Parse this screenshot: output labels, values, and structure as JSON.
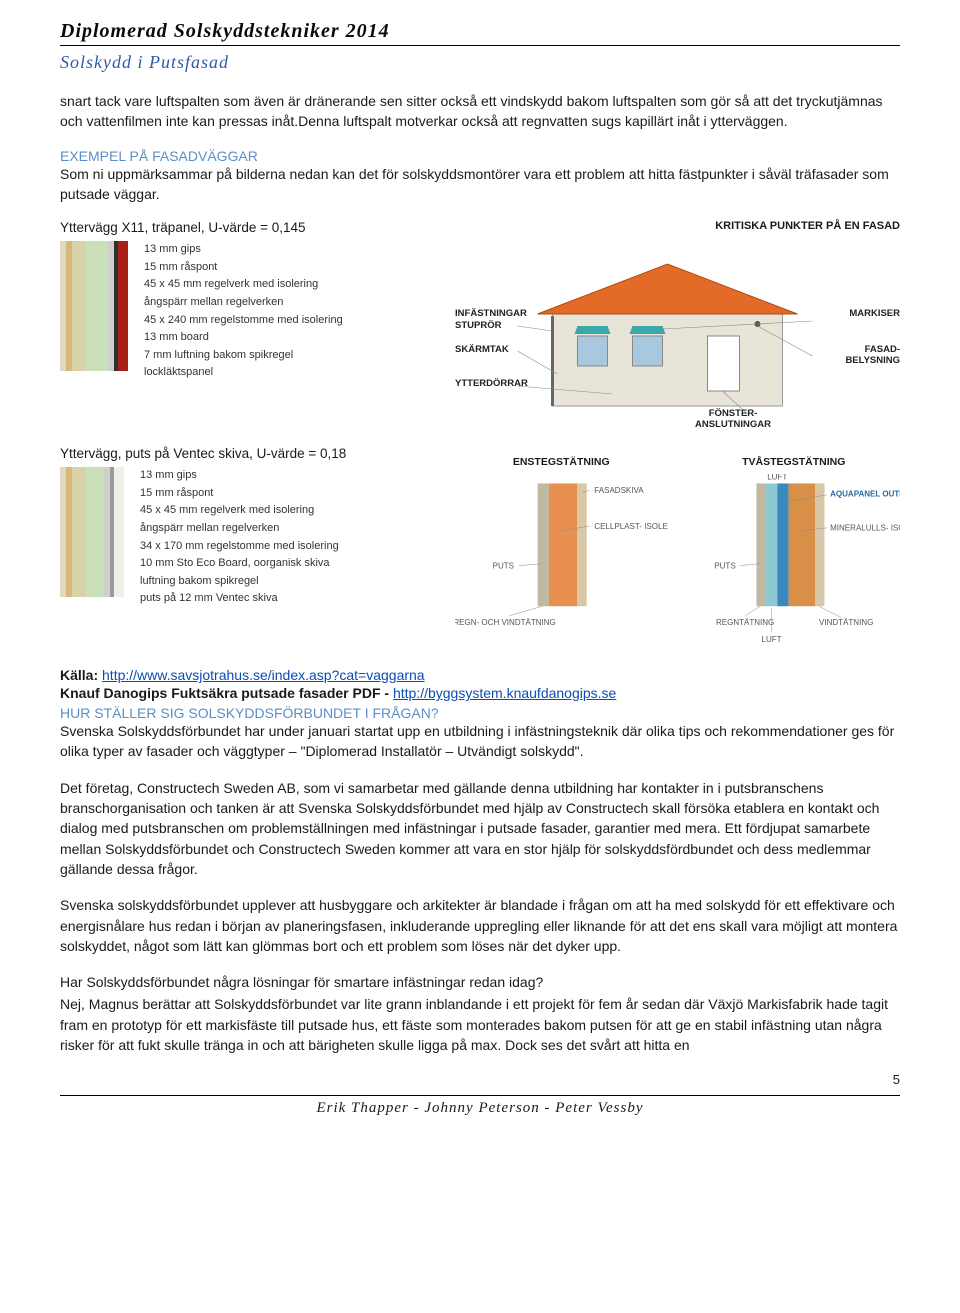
{
  "header": {
    "title": "Diplomerad Solskyddstekniker 2014",
    "subtitle": "Solskydd i Putsfasad"
  },
  "intro": {
    "p1": "snart tack vare luftspalten som även är dränerande sen sitter också ett vindskydd bakom luftspalten som gör så att det tryckutjämnas och vattenfilmen inte kan pressas inåt.Denna luftspalt motverkar också att regnvatten sugs kapillärt inåt i ytterväggen."
  },
  "example": {
    "heading": "EXEMPEL PÅ FASADVÄGGAR",
    "text": "Som ni uppmärksammar på bilderna nedan kan det för solskyddsmontörer vara ett problem att hitta fästpunkter i såväl träfasader som putsade väggar."
  },
  "diagram1": {
    "title": "Yttervägg X11, träpanel, U-värde = 0,145",
    "layers": [
      "13 mm gips",
      "15 mm råspont",
      "45 x 45 mm regelverk med isolering",
      "ångspärr mellan regelverken",
      "45 x 240 mm regelstomme med isolering",
      "13 mm board",
      "7 mm luftning bakom spikregel",
      "lockläktspanel"
    ],
    "bars": [
      {
        "w": 6,
        "c": "#e0d8c0"
      },
      {
        "w": 6,
        "c": "#d6b87a"
      },
      {
        "w": 14,
        "c": "#d8d2a8"
      },
      {
        "w": 22,
        "c": "#c9e0b8"
      },
      {
        "w": 6,
        "c": "#cfcfcf"
      },
      {
        "w": 4,
        "c": "#303030"
      },
      {
        "w": 10,
        "c": "#a82015"
      }
    ]
  },
  "diagram2": {
    "title": "Yttervägg, puts på Ventec skiva,  U-värde = 0,18",
    "layers": [
      "13 mm gips",
      "15 mm råspont",
      "45 x 45 mm regelverk med isolering",
      "ångspärr mellan regelverken",
      "34 x 170 mm regelstomme med isolering",
      "10 mm Sto Eco Board, oorganisk skiva",
      "luftning bakom spikregel",
      "puts på 12 mm Ventec skiva"
    ],
    "bars": [
      {
        "w": 6,
        "c": "#e0d8c0"
      },
      {
        "w": 6,
        "c": "#d6b87a"
      },
      {
        "w": 14,
        "c": "#d8d2a8"
      },
      {
        "w": 18,
        "c": "#c9e0b8"
      },
      {
        "w": 6,
        "c": "#cfcfcf"
      },
      {
        "w": 4,
        "c": "#9a9a9a"
      },
      {
        "w": 10,
        "c": "#f0efe8"
      }
    ]
  },
  "house": {
    "title": "KRITISKA PUNKTER PÅ EN FASAD",
    "labels": {
      "infastningar": "INFÄSTNINGAR",
      "stupror": "STUPRÖR",
      "skarmtak": "SKÄRMTAK",
      "ytterdorrar": "YTTERDÖRRAR",
      "markiser": "MARKISER",
      "fasadbelysning": "FASAD-\nBELYSNING",
      "fonster": "FÖNSTER-\nANSLUTNINGAR"
    },
    "colors": {
      "roof": "#e46a28",
      "wall": "#e8e4d8",
      "window": "#a8c8e0",
      "awning": "#3aa8a8"
    }
  },
  "stratum": {
    "left_title": "ENSTEGSTÄTNING",
    "right_title": "TVÅSTEGSTÄTNING",
    "labels": {
      "fasadskiva": "FASADSKIVA",
      "cellplast": "CELLPLAST-\nISOLERING",
      "puts": "PUTS",
      "regnvind": "REGN- OCH\nVINDTÄTNING",
      "luft": "LUFT",
      "aquapanel": "AQUAPANEL\nOUTDOOR",
      "mineralull": "MINERALULLS-\nISOLERING",
      "regntat": "REGNTÄTNING",
      "vindtat": "VINDTÄTNING"
    },
    "colors": {
      "fasadskiva": "#d8c8a8",
      "cellplast": "#e89050",
      "puts": "#c0b8a0",
      "luft": "#8ec8d0",
      "aquapanel": "#3a8ac0",
      "mineralull": "#d89048"
    }
  },
  "source": {
    "kalla_label": "Källa: ",
    "kalla_url": "http://www.savsjotrahus.se/index.asp?cat=vaggarna",
    "knauf_label": "Knauf Danogips Fuktsäkra putsade fasader PDF - ",
    "knauf_url": "http://byggsystem.knaufdanogips.se"
  },
  "section2": {
    "heading": "HUR STÄLLER SIG SOLSKYDDSFÖRBUNDET I FRÅGAN?",
    "p1": "Svenska Solskyddsförbundet har under januari startat upp en utbildning i infästningsteknik där olika tips och rekommendationer ges för olika typer av fasader och väggtyper – \"Diplomerad Installatör – Utvändigt solskydd\".",
    "p2": "Det företag, Constructech Sweden AB, som vi samarbetar med gällande denna utbildning har kontakter in i putsbranschens branschorganisation och tanken är att Svenska Solskyddsförbundet med hjälp av Constructech skall försöka etablera en kontakt och dialog med putsbranschen om problemställningen med infästningar i putsade fasader, garantier med mera. Ett fördjupat samarbete mellan Solskyddsförbundet och Constructech Sweden kommer att vara en stor hjälp för solskyddsfördbundet och dess medlemmar gällande dessa frågor.",
    "p3": "Svenska solskyddsförbundet upplever att husbyggare och arkitekter är blandade i frågan om att ha med solskydd för ett effektivare och energisnålare hus redan i början av planeringsfasen, inkluderande uppregling eller liknande för att det ens skall vara möjligt att montera solskyddet, något som lätt kan glömmas bort och ett problem som löses när det dyker upp.",
    "q1": "Har Solskyddsförbundet några lösningar för smartare infästningar redan idag?",
    "p4": "Nej, Magnus berättar att Solskyddsförbundet var lite grann inblandande i ett projekt för fem år sedan där Växjö Markisfabrik hade tagit fram en prototyp för ett markisfäste till putsade hus, ett fäste som monterades bakom putsen för att ge en stabil infästning utan några risker för att fukt skulle tränga in och att bärigheten skulle ligga på max. Dock ses det svårt att hitta en"
  },
  "page_number": "5",
  "footer": "Erik Thapper - Johnny Peterson - Peter Vessby"
}
